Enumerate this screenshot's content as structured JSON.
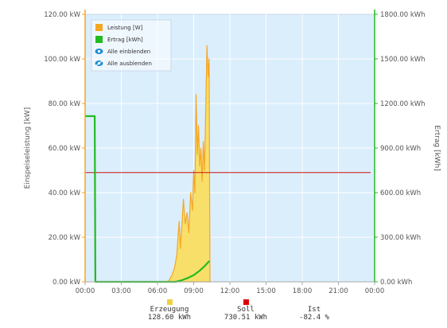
{
  "chart_data": {
    "type": "area",
    "x_axis": {
      "ticks": [
        "00:00",
        "03:00",
        "06:00",
        "09:00",
        "12:00",
        "15:00",
        "18:00",
        "21:00",
        "00:00"
      ],
      "range_hours": [
        0,
        24
      ]
    },
    "y_left": {
      "label": "Einspeiseleistung [kW]",
      "ticks": [
        "0.00 kW",
        "20.00 kW",
        "40.00 kW",
        "60.00 kW",
        "80.00 kW",
        "100.00 kW",
        "120.00 kW"
      ],
      "range": [
        0,
        120
      ]
    },
    "y_right": {
      "label": "Ertrag [kWh]",
      "ticks": [
        "0.00 kWh",
        "300.00 kWh",
        "600.00 kWh",
        "900.00 kWh",
        "1200.00 kWh",
        "1500.00 kWh",
        "1800.00 kWh"
      ],
      "range": [
        0,
        1800
      ]
    },
    "grid": true,
    "legend_position": "top-left",
    "legend": [
      {
        "label": "Leistung [W]",
        "color": "#f5a623",
        "kind": "square"
      },
      {
        "label": "Ertrag [kWh]",
        "color": "#22bb22",
        "kind": "square"
      },
      {
        "label": "Alle einblenden",
        "kind": "eye-icon"
      },
      {
        "label": "Alle ausblenden",
        "kind": "eye-slash-icon"
      }
    ],
    "series": [
      {
        "name": "Leistung [W]",
        "axis": "left",
        "type": "area",
        "line_color": "#f5a623",
        "fill_color": "#f7df6a",
        "points": [
          [
            6.83,
            0
          ],
          [
            7.0,
            1
          ],
          [
            7.2,
            3
          ],
          [
            7.4,
            6
          ],
          [
            7.6,
            12
          ],
          [
            7.7,
            20
          ],
          [
            7.8,
            27
          ],
          [
            7.9,
            15
          ],
          [
            8.0,
            23
          ],
          [
            8.15,
            37
          ],
          [
            8.3,
            26
          ],
          [
            8.45,
            31
          ],
          [
            8.6,
            22
          ],
          [
            8.75,
            40
          ],
          [
            8.9,
            32
          ],
          [
            9.0,
            50
          ],
          [
            9.1,
            40
          ],
          [
            9.2,
            84
          ],
          [
            9.3,
            57
          ],
          [
            9.4,
            70
          ],
          [
            9.5,
            52
          ],
          [
            9.6,
            60
          ],
          [
            9.7,
            45
          ],
          [
            9.8,
            63
          ],
          [
            9.9,
            50
          ],
          [
            10.0,
            78
          ],
          [
            10.1,
            106
          ],
          [
            10.2,
            92
          ],
          [
            10.28,
            100
          ],
          [
            10.35,
            0
          ]
        ]
      },
      {
        "name": "Ertrag [kWh]",
        "axis": "right",
        "type": "line",
        "color": "#22bb22",
        "points": [
          [
            0,
            1115
          ],
          [
            0.8,
            1115
          ],
          [
            0.85,
            0
          ],
          [
            7.5,
            0
          ],
          [
            8.0,
            10
          ],
          [
            8.5,
            25
          ],
          [
            9.0,
            45
          ],
          [
            9.5,
            75
          ],
          [
            9.9,
            105
          ],
          [
            10.3,
            140
          ]
        ]
      }
    ],
    "reference_line": {
      "axis": "left",
      "value": 49,
      "color": "#cc1111"
    }
  },
  "summary": [
    {
      "label": "Erzeugung",
      "value": "128.60 kWh",
      "color": "#f0d040"
    },
    {
      "label": "Soll",
      "value": "730.51 kWh",
      "color": "#e00000"
    },
    {
      "label": "Ist",
      "value": "-82.4 %",
      "color": null
    }
  ]
}
